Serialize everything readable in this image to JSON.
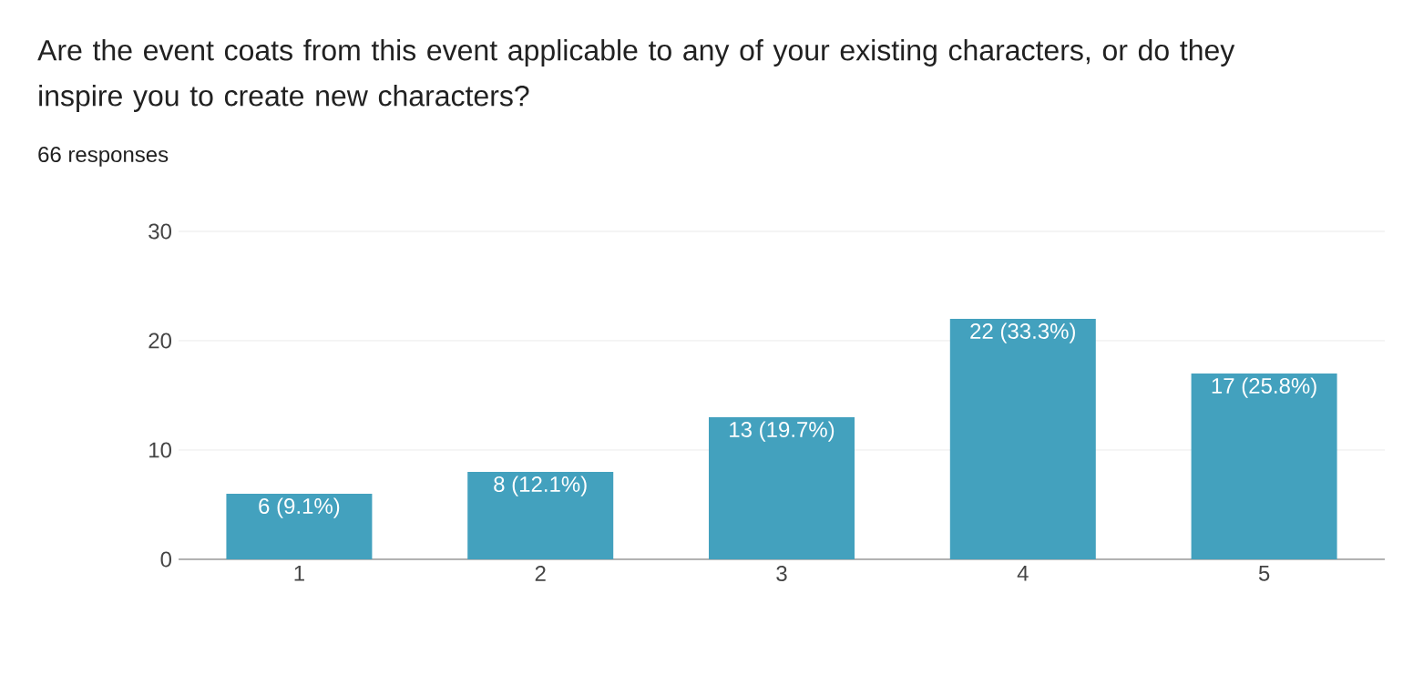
{
  "chart_data": {
    "type": "bar",
    "title": "Are the event coats from this event applicable to any of your existing characters, or do they inspire you to create new characters?",
    "subtitle": "66 responses",
    "categories": [
      "1",
      "2",
      "3",
      "4",
      "5"
    ],
    "values": [
      6,
      8,
      13,
      22,
      17
    ],
    "value_labels": [
      "6 (9.1%)",
      "8 (12.1%)",
      "13 (19.7%)",
      "22 (33.3%)",
      "17 (25.8%)"
    ],
    "color": "#43a1be",
    "ylim": [
      0,
      30
    ],
    "yticks": [
      0,
      10,
      20,
      30
    ],
    "grid": "y"
  }
}
